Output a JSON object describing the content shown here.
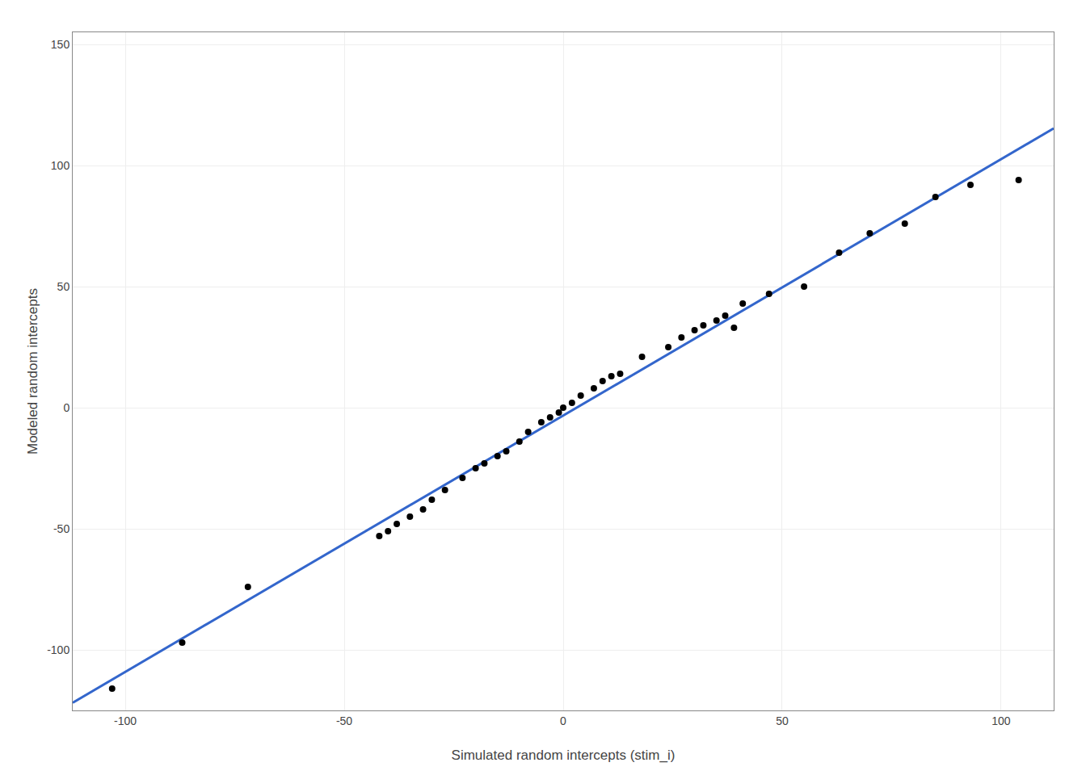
{
  "chart_data": {
    "type": "scatter",
    "xlabel": "Simulated random intercepts (stim_i)",
    "ylabel": "Modeled random intercepts",
    "xlim": [
      -112,
      112
    ],
    "ylim": [
      -125,
      155
    ],
    "xticks": [
      -100,
      -50,
      0,
      50,
      100
    ],
    "yticks": [
      -100,
      -50,
      0,
      50,
      100,
      150
    ],
    "grid": true,
    "series": [
      {
        "type": "line",
        "color": "#3366CC",
        "x": [
          -112,
          112
        ],
        "values": [
          -121.791012,
          115.306544
        ]
      },
      {
        "type": "scatter",
        "color": "black",
        "x": [
          -103,
          -87,
          -72,
          -42,
          -40,
          -38,
          -35,
          -32,
          -30,
          -27,
          -23,
          -20,
          -18,
          -15,
          -13,
          -10,
          -8,
          -5,
          -3,
          -1,
          0,
          2,
          4,
          7,
          9,
          11,
          13,
          18,
          24,
          27,
          30,
          32,
          35,
          37,
          39,
          41,
          47,
          55,
          63,
          70,
          78,
          85,
          93,
          104
        ],
        "values": [
          -116,
          -97,
          -74,
          -53,
          -51,
          -48,
          -45,
          -42,
          -38,
          -34,
          -29,
          -25,
          -23,
          -20,
          -18,
          -14,
          -10,
          -6,
          -4,
          -2,
          0,
          2,
          5,
          8,
          11,
          13,
          14,
          21,
          25,
          29,
          32,
          34,
          36,
          38,
          33,
          43,
          47,
          50,
          64,
          72,
          76,
          87,
          92,
          94
        ]
      }
    ]
  }
}
